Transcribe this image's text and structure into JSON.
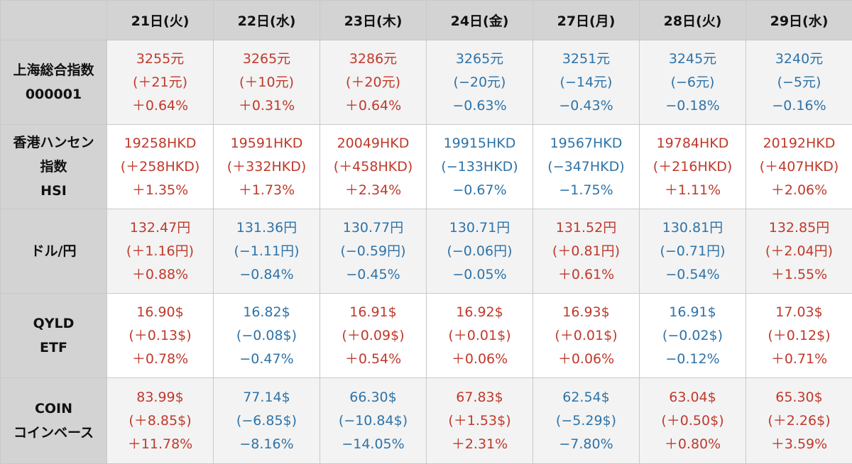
{
  "colors": {
    "up": "#c0392b",
    "down": "#2e73a8",
    "header_bg": "#d3d3d3",
    "stripe_bg": "#f3f3f3"
  },
  "days": [
    "21日(火)",
    "22日(水)",
    "23日(木)",
    "24日(金)",
    "27日(月)",
    "28日(火)",
    "29日(水)"
  ],
  "rows": [
    {
      "label": [
        "上海総合指数",
        "000001"
      ],
      "cells": [
        {
          "trend": "up",
          "price": "3255元",
          "change": "(＋21元)",
          "pct": "＋0.64%"
        },
        {
          "trend": "up",
          "price": "3265元",
          "change": "(＋10元)",
          "pct": "＋0.31%"
        },
        {
          "trend": "up",
          "price": "3286元",
          "change": "(＋20元)",
          "pct": "＋0.64%"
        },
        {
          "trend": "down",
          "price": "3265元",
          "change": "(−20元)",
          "pct": "−0.63%"
        },
        {
          "trend": "down",
          "price": "3251元",
          "change": "(−14元)",
          "pct": "−0.43%"
        },
        {
          "trend": "down",
          "price": "3245元",
          "change": "(−6元)",
          "pct": "−0.18%"
        },
        {
          "trend": "down",
          "price": "3240元",
          "change": "(−5元)",
          "pct": "−0.16%"
        }
      ]
    },
    {
      "label": [
        "香港ハンセン",
        "指数",
        "HSI"
      ],
      "cells": [
        {
          "trend": "up",
          "price": "19258HKD",
          "change": "(＋258HKD)",
          "pct": "＋1.35%"
        },
        {
          "trend": "up",
          "price": "19591HKD",
          "change": "(＋332HKD)",
          "pct": "＋1.73%"
        },
        {
          "trend": "up",
          "price": "20049HKD",
          "change": "(＋458HKD)",
          "pct": "＋2.34%"
        },
        {
          "trend": "down",
          "price": "19915HKD",
          "change": "(−133HKD)",
          "pct": "−0.67%"
        },
        {
          "trend": "down",
          "price": "19567HKD",
          "change": "(−347HKD)",
          "pct": "−1.75%"
        },
        {
          "trend": "up",
          "price": "19784HKD",
          "change": "(＋216HKD)",
          "pct": "＋1.11%"
        },
        {
          "trend": "up",
          "price": "20192HKD",
          "change": "(＋407HKD)",
          "pct": "＋2.06%"
        }
      ]
    },
    {
      "label": [
        "ドル/円"
      ],
      "cells": [
        {
          "trend": "up",
          "price": "132.47円",
          "change": "(＋1.16円)",
          "pct": "＋0.88%"
        },
        {
          "trend": "down",
          "price": "131.36円",
          "change": "(−1.11円)",
          "pct": "−0.84%"
        },
        {
          "trend": "down",
          "price": "130.77円",
          "change": "(−0.59円)",
          "pct": "−0.45%"
        },
        {
          "trend": "down",
          "price": "130.71円",
          "change": "(−0.06円)",
          "pct": "−0.05%"
        },
        {
          "trend": "up",
          "price": "131.52円",
          "change": "(＋0.81円)",
          "pct": "＋0.61%"
        },
        {
          "trend": "down",
          "price": "130.81円",
          "change": "(−0.71円)",
          "pct": "−0.54%"
        },
        {
          "trend": "up",
          "price": "132.85円",
          "change": "(＋2.04円)",
          "pct": "＋1.55%"
        }
      ]
    },
    {
      "label": [
        "QYLD",
        "ETF"
      ],
      "cells": [
        {
          "trend": "up",
          "price": "16.90$",
          "change": "(＋0.13$)",
          "pct": "＋0.78%"
        },
        {
          "trend": "down",
          "price": "16.82$",
          "change": "(−0.08$)",
          "pct": "−0.47%"
        },
        {
          "trend": "up",
          "price": "16.91$",
          "change": "(＋0.09$)",
          "pct": "＋0.54%"
        },
        {
          "trend": "up",
          "price": "16.92$",
          "change": "(＋0.01$)",
          "pct": "＋0.06%"
        },
        {
          "trend": "up",
          "price": "16.93$",
          "change": "(＋0.01$)",
          "pct": "＋0.06%"
        },
        {
          "trend": "down",
          "price": "16.91$",
          "change": "(−0.02$)",
          "pct": "−0.12%"
        },
        {
          "trend": "up",
          "price": "17.03$",
          "change": "(＋0.12$)",
          "pct": "＋0.71%"
        }
      ]
    },
    {
      "label": [
        "COIN",
        "コインベース"
      ],
      "cells": [
        {
          "trend": "up",
          "price": "83.99$",
          "change": "(＋8.85$)",
          "pct": "＋11.78%"
        },
        {
          "trend": "down",
          "price": "77.14$",
          "change": "(−6.85$)",
          "pct": "−8.16%"
        },
        {
          "trend": "down",
          "price": "66.30$",
          "change": "(−10.84$)",
          "pct": "−14.05%"
        },
        {
          "trend": "up",
          "price": "67.83$",
          "change": "(＋1.53$)",
          "pct": "＋2.31%"
        },
        {
          "trend": "down",
          "price": "62.54$",
          "change": "(−5.29$)",
          "pct": "−7.80%"
        },
        {
          "trend": "up",
          "price": "63.04$",
          "change": "(＋0.50$)",
          "pct": "＋0.80%"
        },
        {
          "trend": "up",
          "price": "65.30$",
          "change": "(＋2.26$)",
          "pct": "＋3.59%"
        }
      ]
    }
  ]
}
